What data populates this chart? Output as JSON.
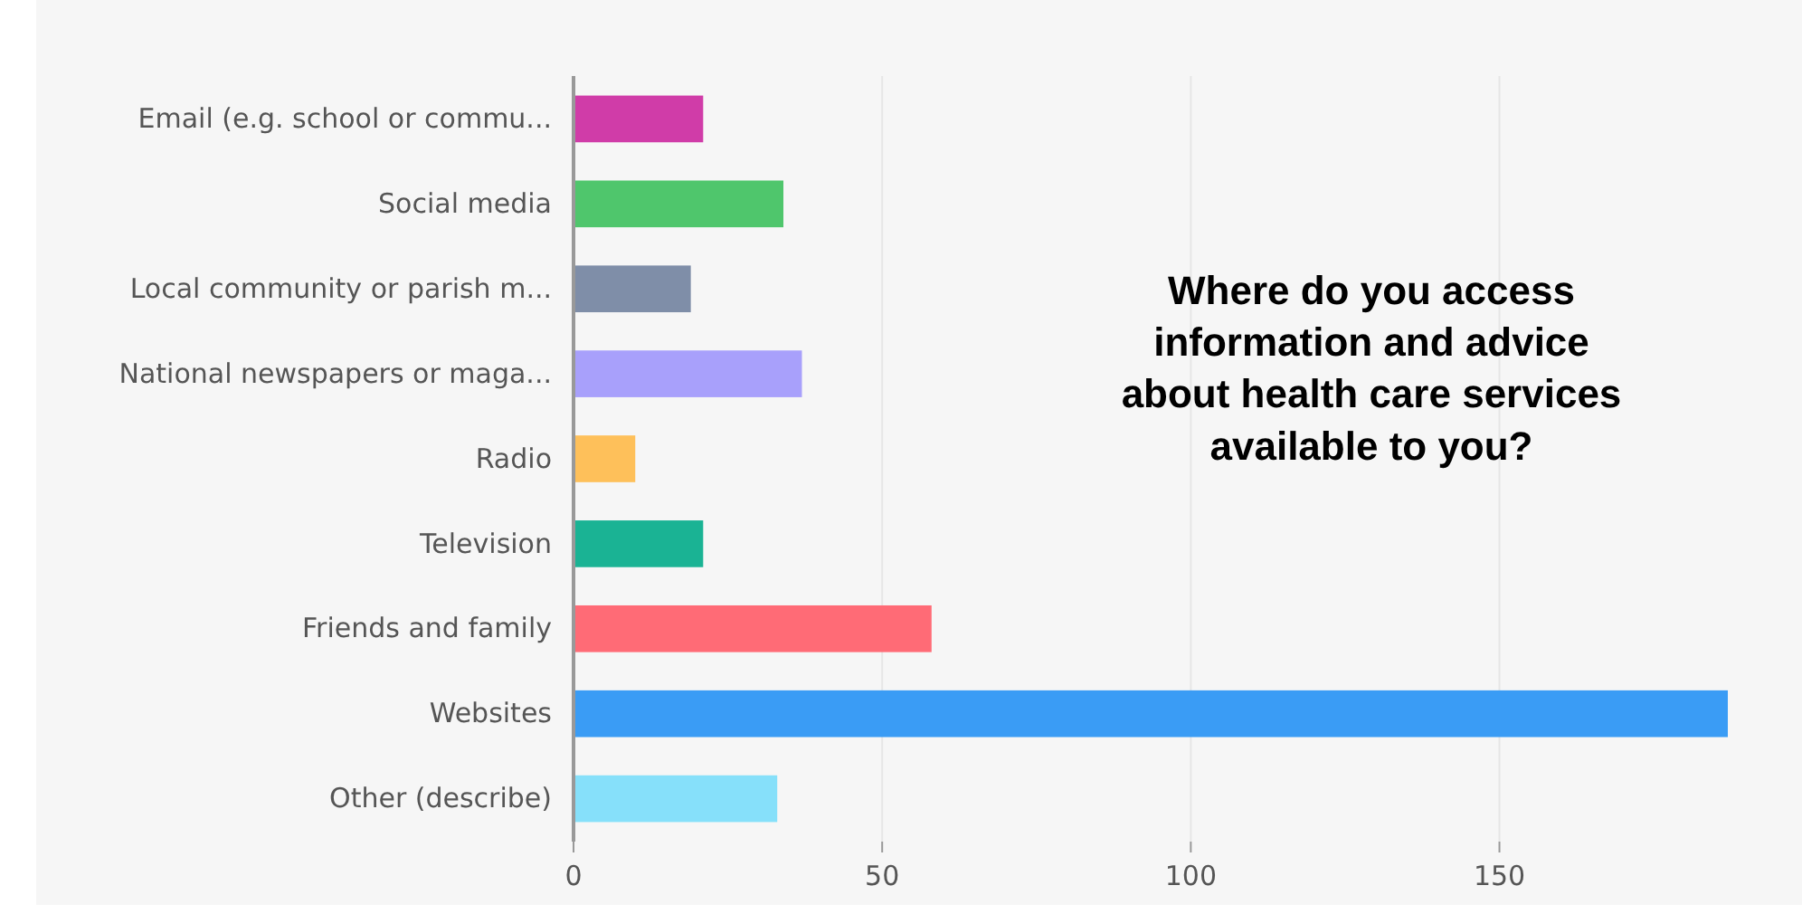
{
  "chart_data": {
    "type": "bar",
    "orientation": "horizontal",
    "title": "Where do you access information and advice about health care services available to you?",
    "categories": [
      "Email (e.g. school or commu...",
      "Social media",
      "Local community or parish m...",
      "National newspapers or maga...",
      "Radio",
      "Television",
      "Friends and family",
      "Websites",
      "Other (describe)"
    ],
    "values": [
      21,
      34,
      19,
      37,
      10,
      21,
      58,
      187,
      33
    ],
    "colors": [
      "#d03ca8",
      "#4fc66c",
      "#7f8ea8",
      "#a8a0fb",
      "#fec05a",
      "#1ab394",
      "#ff6b76",
      "#3a9cf5",
      "#86e0fa"
    ],
    "xlim": [
      0,
      187
    ],
    "xticks": [
      0,
      50,
      100,
      150
    ],
    "grid": "x"
  }
}
